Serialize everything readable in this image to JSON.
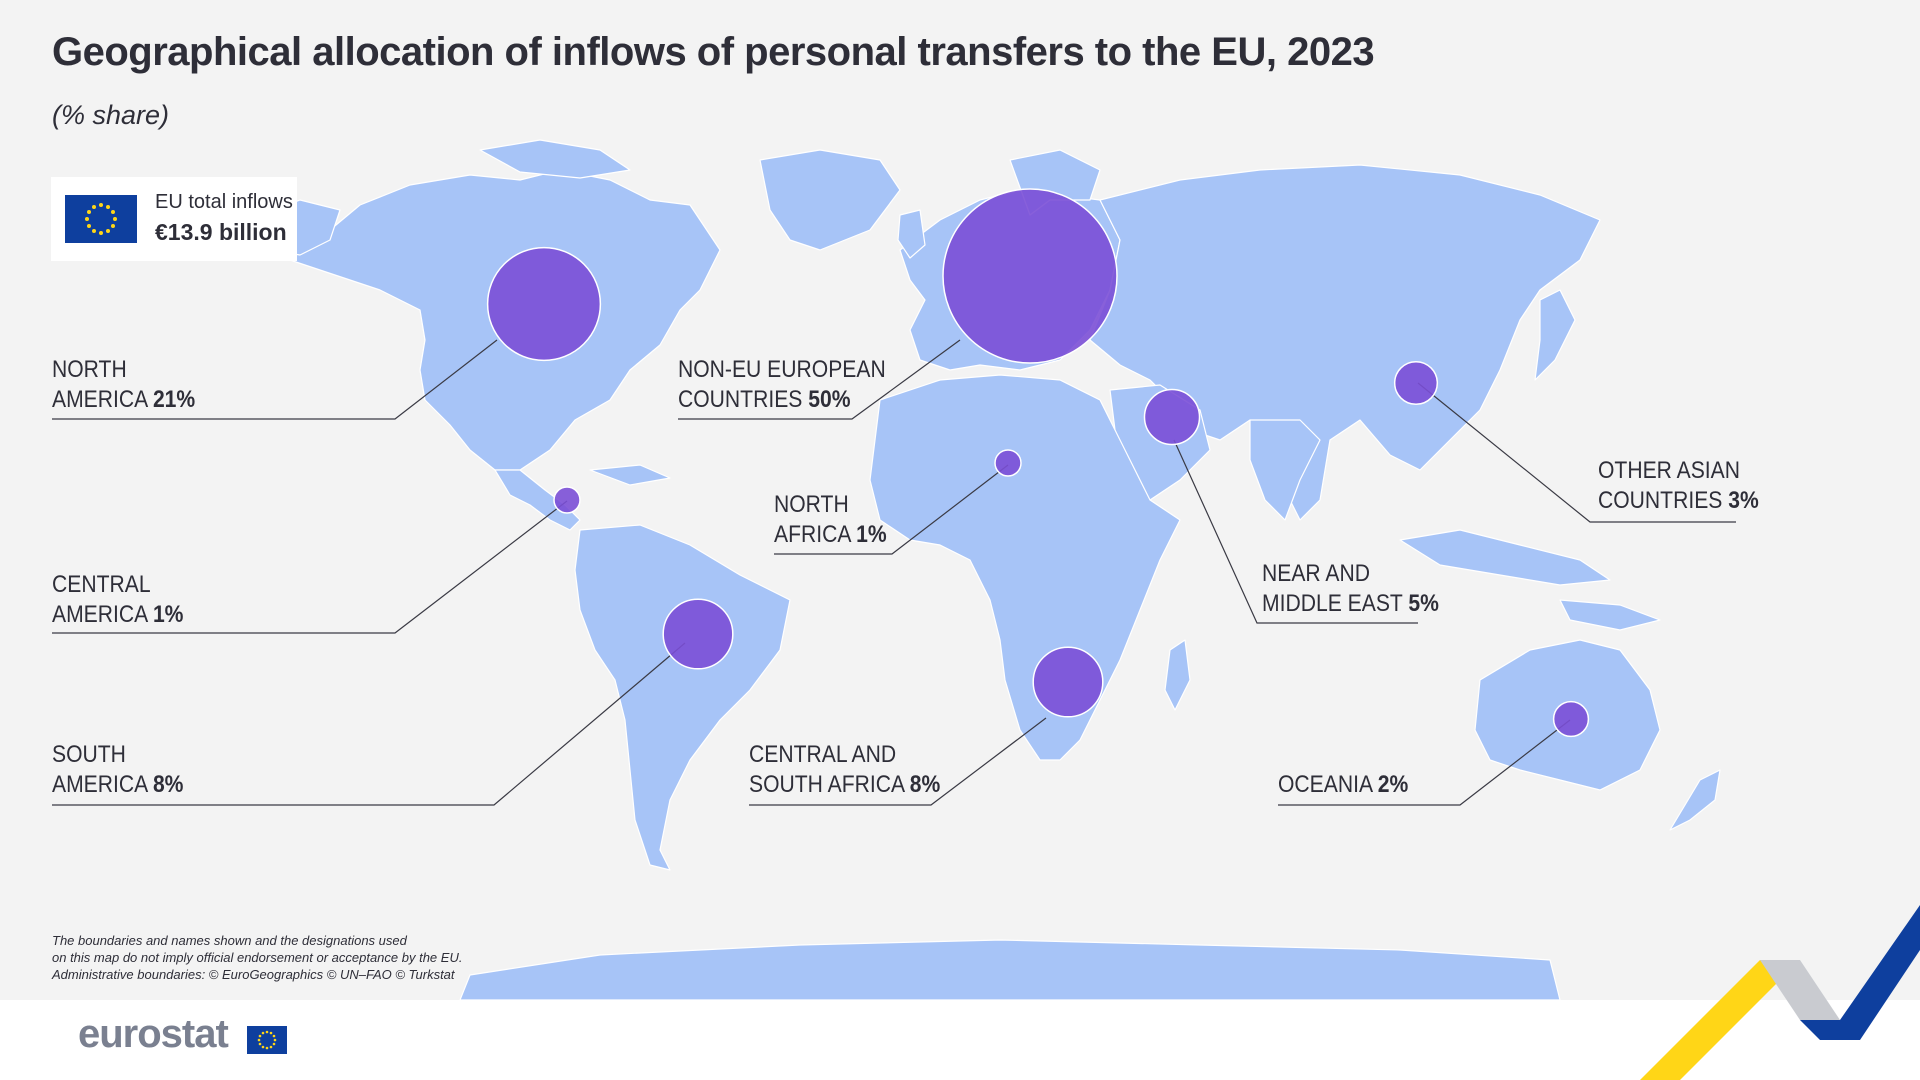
{
  "title": "Geographical allocation of inflows of personal transfers to the EU, 2023",
  "subtitle": "(% share)",
  "eu_total": {
    "label": "EU total inflows",
    "value": "€13.9 billion"
  },
  "regions": [
    {
      "id": "north-america",
      "name_line1": "NORTH",
      "name_line2": "AMERICA",
      "value": "21%",
      "share": 21
    },
    {
      "id": "non-eu-europe",
      "name_line1": "NON-EU EUROPEAN",
      "name_line2": "COUNTRIES",
      "value": "50%",
      "share": 50
    },
    {
      "id": "north-africa",
      "name_line1": "NORTH",
      "name_line2": "AFRICA",
      "value": "1%",
      "share": 1
    },
    {
      "id": "near-middle-east",
      "name_line1": "NEAR AND",
      "name_line2": "MIDDLE EAST",
      "value": "5%",
      "share": 5
    },
    {
      "id": "other-asia",
      "name_line1": "OTHER ASIAN",
      "name_line2": "COUNTRIES",
      "value": "3%",
      "share": 3
    },
    {
      "id": "central-america",
      "name_line1": "CENTRAL",
      "name_line2": "AMERICA",
      "value": "1%",
      "share": 1
    },
    {
      "id": "south-america",
      "name_line1": "SOUTH",
      "name_line2": "AMERICA",
      "value": "8%",
      "share": 8
    },
    {
      "id": "central-south-africa",
      "name_line1": "CENTRAL AND",
      "name_line2": "SOUTH AFRICA",
      "value": "8%",
      "share": 8
    },
    {
      "id": "oceania",
      "name_line1": "",
      "name_line2": "OCEANIA",
      "value": "2%",
      "share": 2
    }
  ],
  "disclaimer": {
    "line1": "The boundaries and names shown and the designations used",
    "line2": "on this map do not imply official endorsement or acceptance by the EU.",
    "line3": "Administrative boundaries: © EuroGeographics © UN–FAO © Turkstat"
  },
  "footer": {
    "logo": "eurostat"
  },
  "colors": {
    "land": "#a7c4f7",
    "bubble": "#7b4fd6",
    "background": "#f3f3f3",
    "text": "#2e2e38",
    "eu_blue": "#0e3f9e",
    "eu_yellow": "#ffd617"
  }
}
